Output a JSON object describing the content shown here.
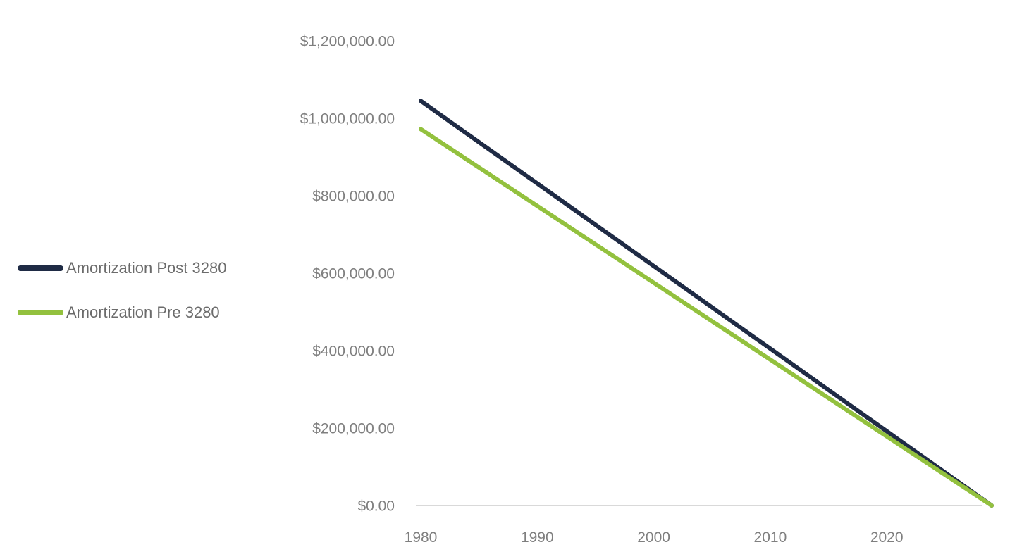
{
  "chart_data": {
    "type": "line",
    "title": "",
    "xlabel": "",
    "ylabel": "",
    "grid": false,
    "legend_position": "left",
    "xlim": [
      1979.5,
      2029.5
    ],
    "ylim": [
      0,
      1200000
    ],
    "x_ticks": [
      {
        "value": 1980,
        "label": "1980"
      },
      {
        "value": 1990,
        "label": "1990"
      },
      {
        "value": 2000,
        "label": "2000"
      },
      {
        "value": 2010,
        "label": "2010"
      },
      {
        "value": 2020,
        "label": "2020"
      }
    ],
    "y_ticks": [
      {
        "value": 1200000,
        "label": "$1,200,000.00"
      },
      {
        "value": 1000000,
        "label": "$1,000,000.00"
      },
      {
        "value": 800000,
        "label": "$800,000.00"
      },
      {
        "value": 600000,
        "label": "$600,000.00"
      },
      {
        "value": 400000,
        "label": "$400,000.00"
      },
      {
        "value": 200000,
        "label": "$200,000.00"
      },
      {
        "value": 0,
        "label": "$0.00"
      }
    ],
    "series": [
      {
        "name": "Amortization Post 3280",
        "color": "#1f2b45",
        "points": [
          [
            1980,
            1045000
          ],
          [
            1990,
            831700
          ],
          [
            2000,
            618400
          ],
          [
            2010,
            405100
          ],
          [
            2020,
            191800
          ],
          [
            2029,
            0
          ]
        ]
      },
      {
        "name": "Amortization Pre 3280",
        "color": "#93c13e",
        "points": [
          [
            1980,
            972000
          ],
          [
            1990,
            773600
          ],
          [
            2000,
            575200
          ],
          [
            2010,
            376800
          ],
          [
            2020,
            178400
          ],
          [
            2029,
            0
          ]
        ]
      }
    ],
    "colors": {
      "background": "#ffffff",
      "axis_line": "#d9d9d9",
      "tick_label": "#7f7f7f",
      "legend_label": "#6b6b6b"
    }
  }
}
